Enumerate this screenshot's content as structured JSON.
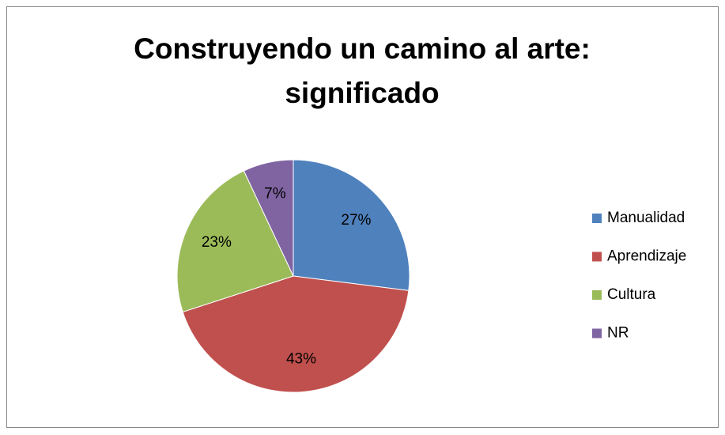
{
  "chart_data": {
    "type": "pie",
    "title": "Construyendo un camino al arte: significado",
    "categories": [
      "Manualidad",
      "Aprendizaje",
      "Cultura",
      "NR"
    ],
    "values": [
      27,
      43,
      23,
      7
    ],
    "value_labels": [
      "27%",
      "43%",
      "23%",
      "7%"
    ],
    "colors": [
      "#4f81bd",
      "#c0504d",
      "#9bbb59",
      "#8064a2"
    ],
    "legend": "right"
  }
}
